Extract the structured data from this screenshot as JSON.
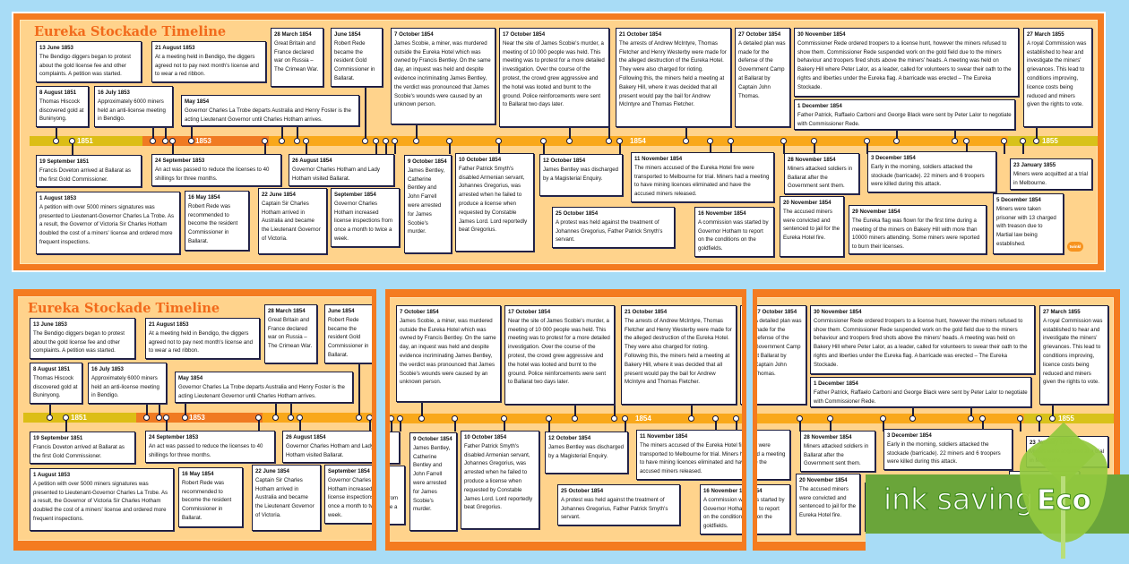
{
  "poster": {
    "title": "Eureka Stockade Timeline",
    "years": [
      "1851",
      "1853",
      "1854",
      "1855"
    ],
    "logo": "twinkl",
    "colors": {
      "frame": "#F47B20",
      "background": "#FFD38C",
      "year_1851": "#DCBE16",
      "year_1853": "#F07A22",
      "year_1854": "#F9A81A",
      "year_1855": "#D8C21A",
      "title": "#F26A1B"
    }
  },
  "events": [
    {
      "date": "13 June 1853",
      "text": "The Bendigo diggers began to protest about the gold license fee and other complaints. A petition was started."
    },
    {
      "date": "21 August 1853",
      "text": "At a meeting held in Bendigo, the diggers agreed not to pay next month's license and to wear a red ribbon."
    },
    {
      "date": "28 March 1854",
      "text": "Great Britain and France declared war on Russia – The Crimean War."
    },
    {
      "date": "June 1854",
      "text": "Robert Rede became the resident Gold Commissioner in Ballarat."
    },
    {
      "date": "8 August 1851",
      "text": "Thomas Hiscock discovered gold at Buninyong."
    },
    {
      "date": "16 July 1853",
      "text": "Approximately 6000 miners held an anti-license meeting in Bendigo."
    },
    {
      "date": "May 1854",
      "text": "Governor Charles La Trobe departs Australia and Henry Foster is the acting Lieutenant Governor until Charles Hotham arrives."
    },
    {
      "date": "7 October 1854",
      "text": "James Scobie, a miner, was murdered outside the Eureka Hotel which was owned by Francis Bentley. On the same day, an inquest was held and despite evidence incriminating James Bentley, the verdict was pronounced that James Scobie's wounds were caused by an unknown person."
    },
    {
      "date": "17 October 1854",
      "text": "Near the site of James Scobie's murder, a meeting of 10 000 people was held. This meeting was to protest for a more detailed investigation. Over the course of the protest, the crowd grew aggressive and the hotel was looted and burnt to the ground. Police reinforcements were sent to Ballarat two days later."
    },
    {
      "date": "21 October 1854",
      "text": "The arrests of Andrew McIntyre, Thomas Fletcher and Henry Westerby were made for the alleged destruction of the Eureka Hotel. They were also charged for rioting. Following this, the miners held a meeting at Bakery Hill, where it was decided that all present would pay the bail for Andrew McIntyre and Thomas Fletcher."
    },
    {
      "date": "27 October 1854",
      "text": "A detailed plan was made for the defense of the Government Camp at Ballarat by Captain John Thomas."
    },
    {
      "date": "30 November 1854",
      "text": "Commissioner Rede ordered troopers to a license hunt, however the miners refused to show them. Commissioner Rede suspended work on the gold field due to the miners behaviour and troopers fired shots above the miners' heads. A meeting was held on Bakery Hill where Peter Lalor, as a leader, called for volunteers to swear their oath to the rights and liberties under the Eureka flag. A barricade was erected – The Eureka Stockade."
    },
    {
      "date": "1 December 1854",
      "text": "Father Patrick, Raffaelo Carboni and George Black were sent by Peter Lalor to negotiate with Commissioner Rede."
    },
    {
      "date": "27 March 1855",
      "text": "A royal Commission was established to hear and investigate the miners' grievances. This lead to conditions improving, licence costs being reduced and miners given the rights to vote."
    },
    {
      "date": "19 September 1851",
      "text": "Francis Doveton arrived at Ballarat as the first Gold Commissioner."
    },
    {
      "date": "24 September 1853",
      "text": "An act was passed to reduce the licenses to 40 shillings for three months."
    },
    {
      "date": "26 August 1854",
      "text": "Governor Charles Hotham and Lady Hotham visited Ballarat."
    },
    {
      "date": "1 August 1853",
      "text": "A petition with over 5000 miners signatures was presented to Lieutenant-Governor Charles La Trobe. As a result, the Governor of Victoria Sir Charles Hotham doubled the cost of a miners' license and ordered more frequent inspections."
    },
    {
      "date": "16 May 1854",
      "text": "Robert Rede was recommended to become the resident Commissioner in Ballarat."
    },
    {
      "date": "22 June 1854",
      "text": "Captain Sir Charles Hotham arrived in Australia and became the Lieutenant Governor of Victoria."
    },
    {
      "date": "September 1854",
      "text": "Governor Charles Hotham increased license inspections from once a month to twice a week."
    },
    {
      "date": "9 October 1854",
      "text": "James Bentley, Catherine Bentley and John Farrell were arrested for James Scobie's murder."
    },
    {
      "date": "10 October 1854",
      "text": "Father Patrick Smyth's disabled Armenian servant, Johannes Gregorius, was arrested when he failed to produce a license when requested by Constable James Lord. Lord reportedly beat Gregorius."
    },
    {
      "date": "12 October 1854",
      "text": "James Bentley was discharged by a Magisterial Enquiry."
    },
    {
      "date": "25 October 1854",
      "text": "A protest was held against the treatment of Johannes Gregorius, Father Patrick Smyth's servant."
    },
    {
      "date": "11 November 1854",
      "text": "The miners accused of the Eureka Hotel fire were transported to Melbourne for trial. Miners had a meeting to have mining licences eliminated and have the accused miners released."
    },
    {
      "date": "16 November 1854",
      "text": "A commission was started by Governor Hotham to report on the conditions on the goldfields."
    },
    {
      "date": "28 November 1854",
      "text": "Miners attacked soldiers in Ballarat after the Government sent them."
    },
    {
      "date": "20 November 1854",
      "text": "The accused miners were convicted and sentenced to jail for the Eureka Hotel fire."
    },
    {
      "date": "3 December 1854",
      "text": "Early in the morning, soldiers attacked the stockade (barricade). 22 miners and 6 troopers were killed during this attack."
    },
    {
      "date": "29 November 1854",
      "text": "The Eureka flag was flown for the first time during a meeting of the miners on Bakery Hill with more than 10000 miners attending. Some miners were reported to burn their licenses."
    },
    {
      "date": "23 January 1855",
      "text": "Miners were acquitted at a trial in Melbourne."
    },
    {
      "date": "5 December 1854",
      "text": "Miners were taken prisoner with 13 charged with treason due to Martial law being established."
    }
  ],
  "badge": {
    "ink_saving": "ink saving",
    "eco": "Eco",
    "color": "#6AA53A",
    "icon": "leaf-icon"
  }
}
